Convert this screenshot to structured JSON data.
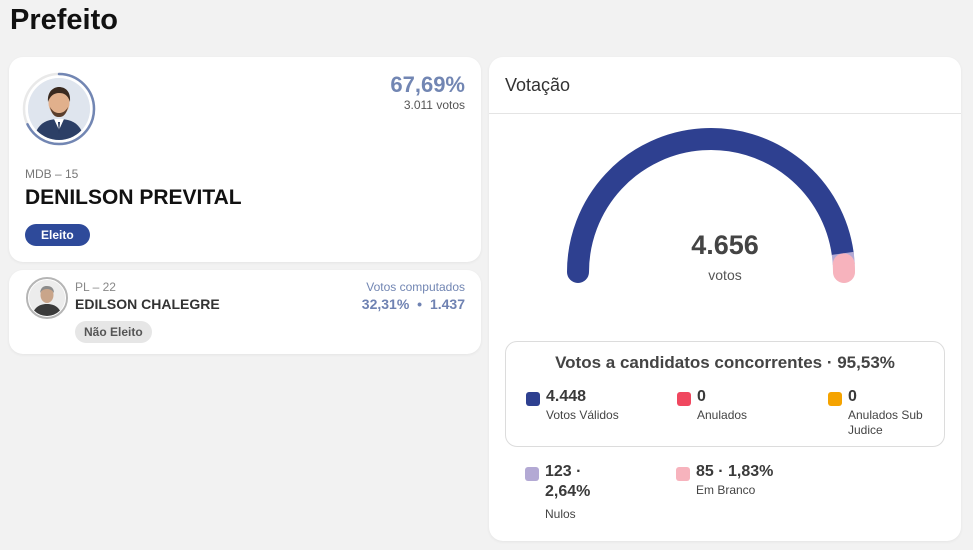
{
  "page": {
    "title": "Prefeito"
  },
  "winner": {
    "percent": "67,69%",
    "percent_fraction": 0.6769,
    "votes": "3.011 votos",
    "party": "MDB – 15",
    "name": "DENILSON PREVITAL",
    "status": "Eleito"
  },
  "second": {
    "party": "PL – 22",
    "name": "EDILSON CHALEGRE",
    "status": "Não Eleito",
    "computed_label": "Votos computados",
    "percent": "32,31%",
    "separator": "•",
    "votes": "1.437"
  },
  "votacao": {
    "title": "Votação",
    "total": "4.656",
    "unit": "votos",
    "candidates_title": "Votos a candidatos concorrentes · 95,53%",
    "stats": [
      {
        "value": "4.448",
        "label": "Votos Válidos",
        "color": "#2e4090"
      },
      {
        "value": "0",
        "label": "Anulados",
        "color": "#f0475f"
      },
      {
        "value": "0",
        "label": "Anulados Sub Judice",
        "color": "#f5a300"
      },
      {
        "value": "123 · 2,64%",
        "label": "Nulos",
        "color": "#b3a9d4"
      },
      {
        "value": "85 · 1,83%",
        "label": "Em Branco",
        "color": "#f7b3bd"
      }
    ],
    "gauge_shares": {
      "validos": 0.9553,
      "nulos": 0.0264,
      "branco": 0.0183
    }
  },
  "colors": {
    "accent": "#7286b3",
    "elected": "#2e4a9a",
    "gauge_main": "#2e4090"
  }
}
